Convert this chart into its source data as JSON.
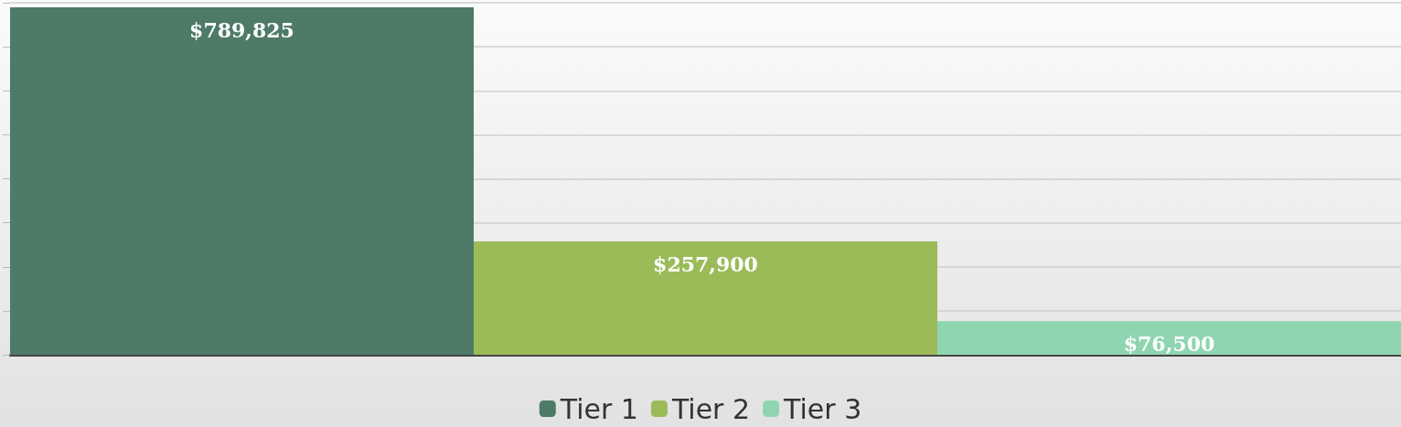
{
  "chart_data": {
    "type": "bar",
    "categories": [
      null
    ],
    "series": [
      {
        "name": "Tier 1",
        "color": "#4e7a68",
        "values": [
          789825
        ],
        "value_labels": [
          "$789,825"
        ]
      },
      {
        "name": "Tier 2",
        "color": "#9bbb59",
        "values": [
          257900
        ],
        "value_labels": [
          "$257,900"
        ]
      },
      {
        "name": "Tier 3",
        "color": "#8fd6b0",
        "values": [
          76500
        ],
        "value_labels": [
          "$76,500"
        ]
      }
    ],
    "ylim": [
      0,
      800000
    ],
    "yticks": [
      {
        "value": 0,
        "label": null
      },
      {
        "value": 100000,
        "label": null
      },
      {
        "value": 200000,
        "label": null
      },
      {
        "value": 300000,
        "label": null
      },
      {
        "value": 400000,
        "label": null
      },
      {
        "value": 500000,
        "label": null
      },
      {
        "value": 600000,
        "label": null
      },
      {
        "value": 700000,
        "label": null
      },
      {
        "value": 800000,
        "label": null
      }
    ],
    "grid": "y",
    "legend": "bottom"
  }
}
